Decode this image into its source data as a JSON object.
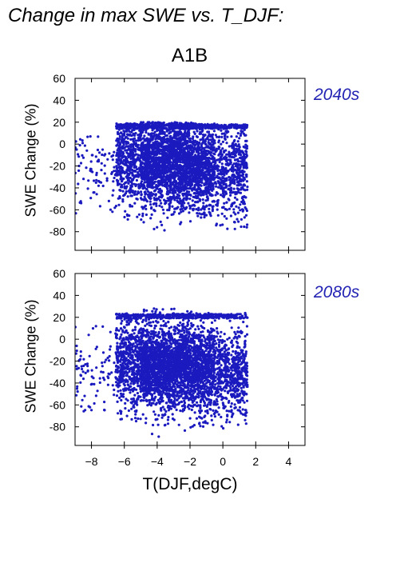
{
  "title": "Change in max SWE vs. T_DJF:",
  "scenario": "A1B",
  "xlabel": "T(DJF,degC)",
  "colors": {
    "points": "#1a1abf",
    "period_label": "#2323b4",
    "axis": "#000000"
  },
  "chart_data": [
    {
      "type": "scatter",
      "period_label": "2040s",
      "xlabel": "",
      "ylabel": "SWE Change (%)",
      "xlim": [
        -9,
        5
      ],
      "ylim": [
        -97,
        60
      ],
      "xticks": [
        -8,
        -6,
        -4,
        -2,
        0,
        2,
        4
      ],
      "yticks": [
        60,
        40,
        20,
        0,
        -20,
        -40,
        -60,
        -80
      ],
      "show_x_ticklabels": false,
      "grid": false,
      "density_regions": [
        {
          "x_range": [
            -9.0,
            -6.5
          ],
          "y_range": [
            -67,
            8
          ],
          "count": 90,
          "y_center": -20
        },
        {
          "x_range": [
            -6.5,
            -5.0
          ],
          "y_range": [
            -70,
            19
          ],
          "count": 500,
          "y_center": -15
        },
        {
          "x_range": [
            -5.0,
            -1.8
          ],
          "y_range": [
            -80,
            20
          ],
          "count": 2000,
          "y_center": -18
        },
        {
          "x_range": [
            -1.8,
            -0.5
          ],
          "y_range": [
            -68,
            19
          ],
          "count": 650,
          "y_center": -22
        },
        {
          "x_range": [
            -0.5,
            1.5
          ],
          "y_range": [
            -78,
            18
          ],
          "count": 550,
          "y_center": -25
        }
      ],
      "plateau_y": 18,
      "plateau_x_range": [
        -6.5,
        1.5
      ]
    },
    {
      "type": "scatter",
      "period_label": "2080s",
      "xlabel": "T(DJF,degC)",
      "ylabel": "SWE Change (%)",
      "xlim": [
        -9,
        5
      ],
      "ylim": [
        -97,
        60
      ],
      "xticks": [
        -8,
        -6,
        -4,
        -2,
        0,
        2,
        4
      ],
      "yticks": [
        60,
        40,
        20,
        0,
        -20,
        -40,
        -60,
        -80
      ],
      "show_x_ticklabels": true,
      "grid": false,
      "density_regions": [
        {
          "x_range": [
            -9.0,
            -6.5
          ],
          "y_range": [
            -67,
            12
          ],
          "count": 90,
          "y_center": -30
        },
        {
          "x_range": [
            -6.5,
            -5.0
          ],
          "y_range": [
            -75,
            24
          ],
          "count": 550,
          "y_center": -20
        },
        {
          "x_range": [
            -5.0,
            -1.8
          ],
          "y_range": [
            -90,
            28
          ],
          "count": 2100,
          "y_center": -25
        },
        {
          "x_range": [
            -1.8,
            -0.5
          ],
          "y_range": [
            -80,
            24
          ],
          "count": 700,
          "y_center": -28
        },
        {
          "x_range": [
            -0.5,
            1.5
          ],
          "y_range": [
            -85,
            24
          ],
          "count": 600,
          "y_center": -30
        }
      ],
      "plateau_y": 23,
      "plateau_x_range": [
        -6.5,
        1.5
      ]
    }
  ]
}
